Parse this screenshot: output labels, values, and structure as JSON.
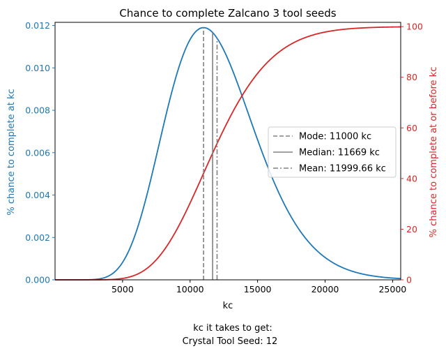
{
  "chart_data": {
    "type": "line",
    "title": "Chance to complete Zalcano 3 tool seeds",
    "xlabel": "kc",
    "ylabel_left": "% chance to complete at kc",
    "ylabel_right": "% chance to complete at or before kc",
    "xlim": [
      0,
      25600
    ],
    "ylim_left": [
      0,
      0.01215
    ],
    "ylim_right": [
      0,
      101.7
    ],
    "x_ticks": [
      5000,
      10000,
      15000,
      20000,
      25000
    ],
    "y_left_ticks": [
      "0.000",
      "0.002",
      "0.004",
      "0.006",
      "0.008",
      "0.010",
      "0.012"
    ],
    "y_right_ticks": [
      "0",
      "20",
      "40",
      "60",
      "80",
      "100"
    ],
    "series": [
      {
        "axis": "left",
        "color": "#1f77b4",
        "shape": "gamma-pmf",
        "peak_x": 11000,
        "points": [
          [
            0,
            0
          ],
          [
            2000,
            0
          ],
          [
            3000,
            2e-05
          ],
          [
            4000,
            0.0002
          ],
          [
            5000,
            0.0008
          ],
          [
            6000,
            0.0021
          ],
          [
            7000,
            0.0041
          ],
          [
            8000,
            0.0065
          ],
          [
            9000,
            0.0091
          ],
          [
            10000,
            0.0112
          ],
          [
            11000,
            0.0119
          ],
          [
            12000,
            0.0113
          ],
          [
            13000,
            0.0099
          ],
          [
            14000,
            0.008
          ],
          [
            15000,
            0.0061
          ],
          [
            16000,
            0.0044
          ],
          [
            17000,
            0.003
          ],
          [
            18000,
            0.002
          ],
          [
            19000,
            0.0013
          ],
          [
            20000,
            0.0008
          ],
          [
            21000,
            0.0005
          ],
          [
            22000,
            0.0003
          ],
          [
            23000,
            0.00018
          ],
          [
            24000,
            0.0001
          ],
          [
            25600,
            4e-05
          ]
        ]
      },
      {
        "axis": "right",
        "color": "#d62728",
        "shape": "gamma-cdf",
        "points": [
          [
            0,
            0
          ],
          [
            2000,
            0
          ],
          [
            3000,
            0.1
          ],
          [
            4000,
            0.4
          ],
          [
            5000,
            1.6
          ],
          [
            6000,
            4.3
          ],
          [
            7000,
            9.3
          ],
          [
            8000,
            17
          ],
          [
            9000,
            27.5
          ],
          [
            10000,
            39.5
          ],
          [
            11000,
            51.5
          ],
          [
            12000,
            62.5
          ],
          [
            13000,
            72
          ],
          [
            14000,
            80
          ],
          [
            15000,
            86.5
          ],
          [
            16000,
            91
          ],
          [
            17000,
            94
          ],
          [
            18000,
            96
          ],
          [
            19000,
            97.5
          ],
          [
            20000,
            98.3
          ],
          [
            21000,
            98.9
          ],
          [
            22000,
            99.3
          ],
          [
            23000,
            99.6
          ],
          [
            24000,
            99.8
          ],
          [
            25600,
            100
          ]
        ]
      }
    ],
    "vlines": [
      {
        "name": "Mode",
        "x": 11000,
        "style": "dashed",
        "color": "#808080"
      },
      {
        "name": "Median",
        "x": 11669,
        "style": "solid",
        "color": "#808080"
      },
      {
        "name": "Mean",
        "x": 11999.66,
        "style": "dashdot",
        "color": "#808080"
      }
    ],
    "legend": {
      "placement": "center-right",
      "entries": [
        "Mode: 11000 kc",
        "Median: 11669 kc",
        "Mean: 11999.66 kc"
      ]
    },
    "footer": [
      "kc it takes to get:",
      "Crystal Tool Seed: 12"
    ],
    "colors": {
      "left_axis": "#1f77b4",
      "right_axis": "#d62728",
      "vline": "#808080"
    },
    "grid": false
  }
}
